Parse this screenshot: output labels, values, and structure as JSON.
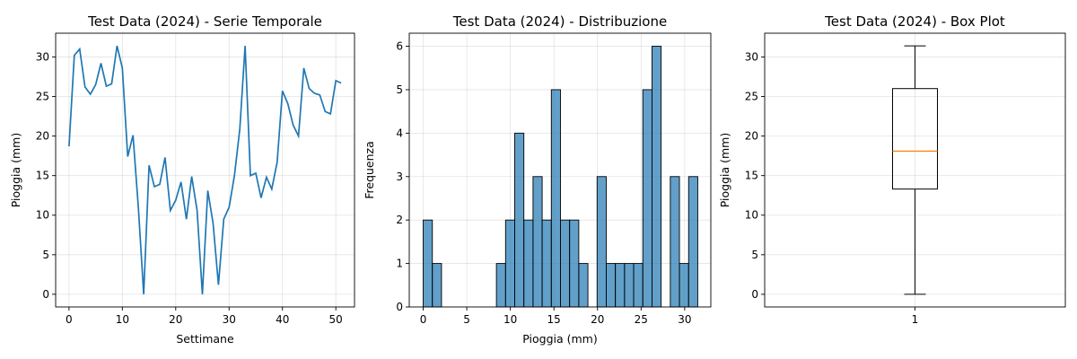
{
  "chart_data": [
    {
      "type": "line",
      "title": "Test Data (2024) - Serie Temporale",
      "xlabel": "Settimane",
      "ylabel": "Pioggia (mm)",
      "xlim": [
        -2.5,
        53.5
      ],
      "ylim": [
        -1.6,
        33
      ],
      "xticks": [
        0,
        10,
        20,
        30,
        40,
        50
      ],
      "yticks": [
        0,
        5,
        10,
        15,
        20,
        25,
        30
      ],
      "grid": true,
      "color": "#1f77b4",
      "series": [
        {
          "x": [
            0,
            1,
            2,
            3,
            4,
            5,
            6,
            7,
            8,
            9,
            10,
            11,
            12,
            13,
            14,
            15,
            16,
            17,
            18,
            19,
            20,
            21,
            22,
            23,
            24,
            25,
            26,
            27,
            28,
            29,
            30,
            31,
            32,
            33,
            34,
            35,
            36,
            37,
            38,
            39,
            40,
            41,
            42,
            43,
            44,
            45,
            46,
            47,
            48,
            49,
            50,
            51
          ],
          "y": [
            18.7,
            30.2,
            31.0,
            26.2,
            25.3,
            26.5,
            29.2,
            26.3,
            26.6,
            31.4,
            28.6,
            17.4,
            20.1,
            10.9,
            0.0,
            16.3,
            13.6,
            13.9,
            17.3,
            10.6,
            11.9,
            14.2,
            9.5,
            14.9,
            10.6,
            0.0,
            13.1,
            9.0,
            1.2,
            9.5,
            11.0,
            15.0,
            20.9,
            31.4,
            15.0,
            15.3,
            12.2,
            14.8,
            13.3,
            16.7,
            25.7,
            24.1,
            21.4,
            20.0,
            28.6,
            26.0,
            25.4,
            25.2,
            23.1,
            22.8,
            27.0,
            26.7
          ]
        }
      ]
    },
    {
      "type": "bar",
      "title": "Test Data (2024) - Distribuzione",
      "xlabel": "Pioggia (mm)",
      "ylabel": "Frequenza",
      "xlim": [
        -1.6,
        33.0
      ],
      "ylim": [
        0,
        6.3
      ],
      "xticks": [
        0,
        5,
        10,
        15,
        20,
        25,
        30
      ],
      "yticks": [
        0,
        1,
        2,
        3,
        4,
        5,
        6
      ],
      "grid": true,
      "color": "#1f77b4",
      "bin_start": 0,
      "bin_width": 1.05,
      "counts": [
        2,
        1,
        0,
        0,
        0,
        0,
        0,
        0,
        1,
        2,
        4,
        2,
        3,
        2,
        5,
        2,
        2,
        1,
        0,
        3,
        1,
        1,
        1,
        1,
        5,
        6,
        0,
        3,
        1,
        3
      ]
    },
    {
      "type": "box",
      "title": "Test Data (2024) - Box Plot",
      "ylabel": "Pioggia (mm)",
      "category": "1",
      "xlim": [
        0.5,
        1.5
      ],
      "ylim": [
        -1.6,
        33
      ],
      "yticks": [
        0,
        5,
        10,
        15,
        20,
        25,
        30
      ],
      "grid": true,
      "min": 0.0,
      "q1": 13.3,
      "median": 18.1,
      "q3": 26.0,
      "max": 31.4,
      "median_color": "#ff7f0e"
    }
  ]
}
